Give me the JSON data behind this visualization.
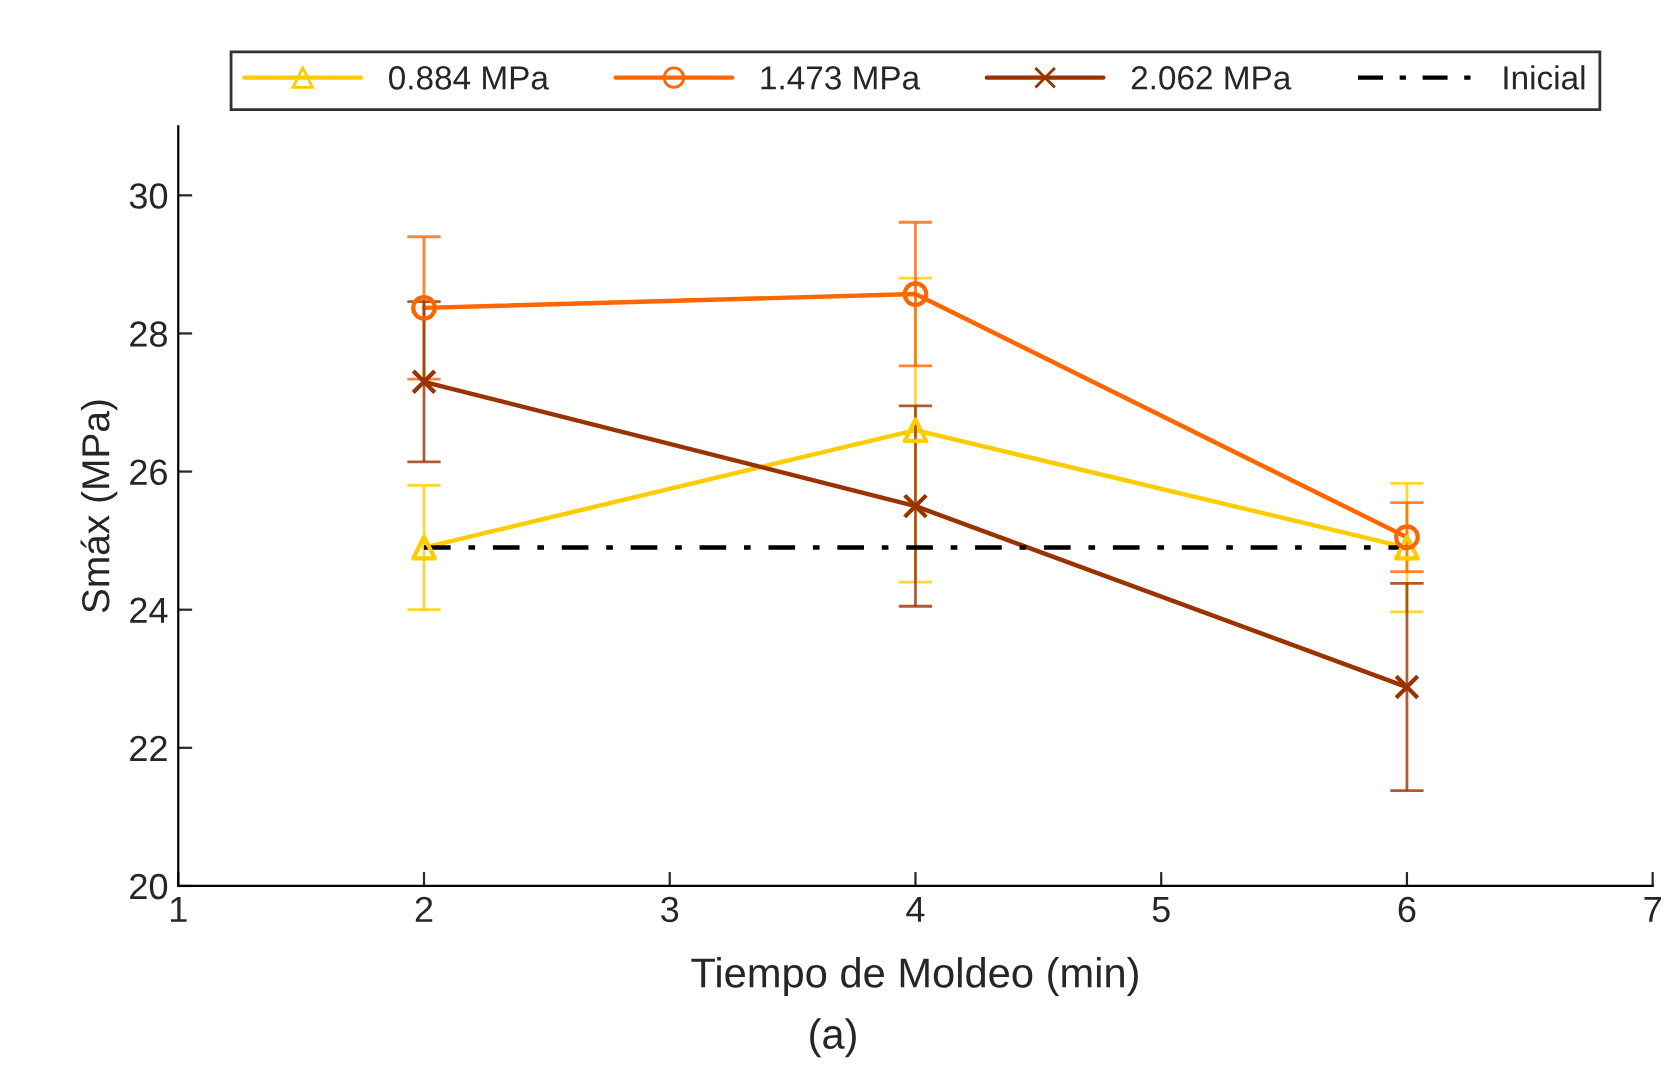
{
  "chart_data": {
    "type": "line",
    "xlabel": "Tiempo de Moldeo (min)",
    "ylabel": "Smáx (MPa)",
    "annotations": [
      "(a)"
    ],
    "x": [
      2,
      4,
      6
    ],
    "xlim": [
      1,
      7
    ],
    "xticks": [
      1,
      2,
      3,
      4,
      5,
      6,
      7
    ],
    "ylim": [
      20,
      31
    ],
    "yticks": [
      20,
      22,
      24,
      26,
      28,
      30
    ],
    "grid": false,
    "legend": "top",
    "series": [
      {
        "name": "0.884 MPa",
        "color": "#ffcc00",
        "values": [
          24.9,
          26.6,
          24.9
        ],
        "errors": [
          0.9,
          2.2,
          0.93
        ],
        "marker": "triangle",
        "line_style": "solid"
      },
      {
        "name": "1.473 MPa",
        "color": "#ff6600",
        "values": [
          28.37,
          28.57,
          25.05
        ],
        "errors": [
          1.03,
          1.04,
          0.5
        ],
        "marker": "circle",
        "line_style": "solid"
      },
      {
        "name": "2.062 MPa",
        "color": "#993300",
        "values": [
          27.3,
          25.5,
          22.88
        ],
        "errors": [
          1.16,
          1.45,
          1.5
        ],
        "marker": "cross",
        "line_style": "solid"
      },
      {
        "name": "Inicial",
        "color": "#000000",
        "x": [
          2,
          6
        ],
        "values": [
          24.9,
          24.9
        ],
        "marker": "none",
        "line_style": "dashdot"
      }
    ]
  }
}
